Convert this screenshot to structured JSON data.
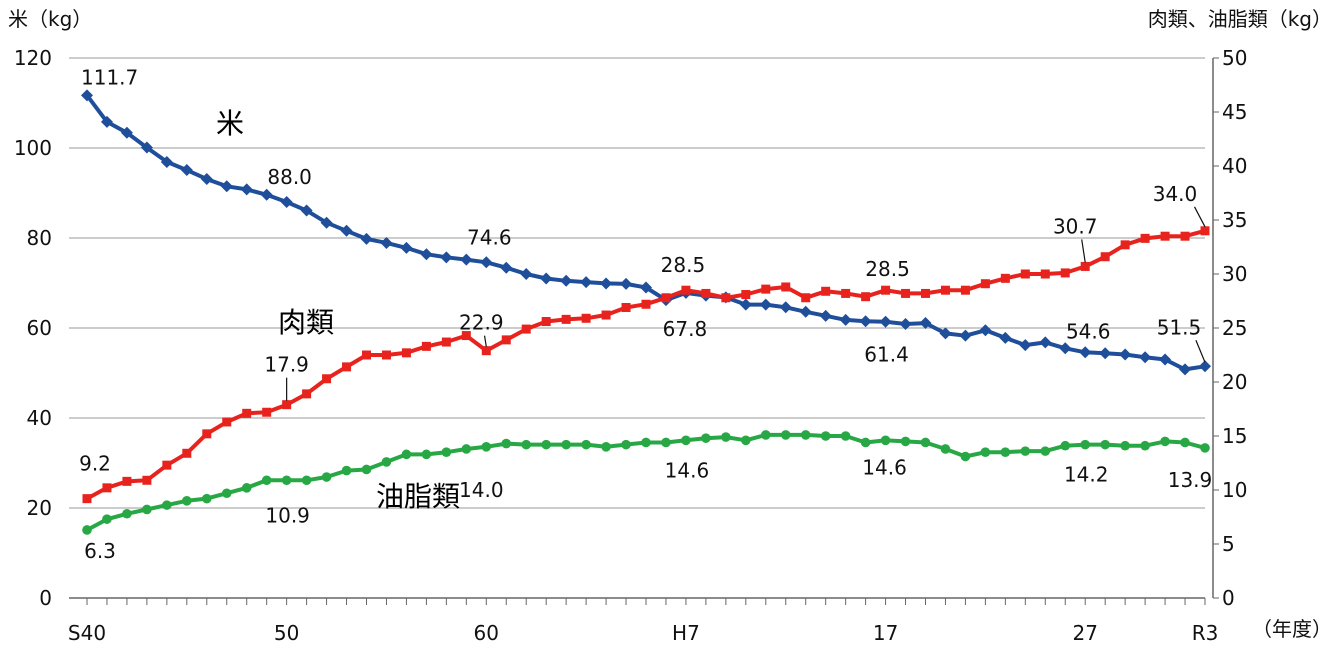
{
  "chart_data": {
    "type": "line",
    "y_left_label": "米（kg）",
    "y_right_label": "肉類、油脂類（kg）",
    "x_unit_label": "（年度）",
    "y_left_lim": [
      0,
      120
    ],
    "y_right_lim": [
      0,
      50
    ],
    "y_left_ticks": [
      "0",
      "20",
      "40",
      "60",
      "80",
      "100",
      "120"
    ],
    "y_right_ticks": [
      "0",
      "5",
      "10",
      "15",
      "20",
      "25",
      "30",
      "35",
      "40",
      "45",
      "50"
    ],
    "x_tick_labels": [
      {
        "index": 0,
        "label": "S40"
      },
      {
        "index": 10,
        "label": "50"
      },
      {
        "index": 20,
        "label": "60"
      },
      {
        "index": 30,
        "label": "H7"
      },
      {
        "index": 40,
        "label": "17"
      },
      {
        "index": 50,
        "label": "27"
      },
      {
        "index": 56,
        "label": "R3"
      }
    ],
    "x_count": 57,
    "series": [
      {
        "name": "米",
        "axis": "left",
        "color": "#1f4e9b",
        "marker": "diamond",
        "values": [
          111.7,
          105.8,
          103.4,
          100.1,
          96.9,
          95.1,
          93.1,
          91.5,
          90.8,
          89.6,
          88.0,
          86.1,
          83.4,
          81.6,
          79.8,
          78.9,
          77.8,
          76.4,
          75.7,
          75.2,
          74.6,
          73.4,
          72.0,
          71.0,
          70.5,
          70.2,
          69.9,
          69.8,
          69.0,
          66.2,
          67.8,
          67.2,
          66.8,
          65.2,
          65.2,
          64.6,
          63.6,
          62.7,
          61.8,
          61.5,
          61.4,
          60.9,
          61.1,
          58.8,
          58.3,
          59.5,
          57.8,
          56.2,
          56.8,
          55.5,
          54.6,
          54.4,
          54.1,
          53.5,
          53.0,
          50.8,
          51.5
        ]
      },
      {
        "name": "肉類",
        "axis": "right",
        "color": "#e8231d",
        "marker": "square",
        "values": [
          9.2,
          10.2,
          10.8,
          10.9,
          12.3,
          13.4,
          15.2,
          16.3,
          17.1,
          17.2,
          17.9,
          18.9,
          20.3,
          21.4,
          22.5,
          22.5,
          22.7,
          23.3,
          23.7,
          24.3,
          22.9,
          23.9,
          24.9,
          25.6,
          25.8,
          25.9,
          26.2,
          26.9,
          27.2,
          27.8,
          28.5,
          28.2,
          27.8,
          28.1,
          28.6,
          28.8,
          27.8,
          28.4,
          28.2,
          27.9,
          28.5,
          28.2,
          28.2,
          28.5,
          28.5,
          29.1,
          29.6,
          30.0,
          30.0,
          30.1,
          30.7,
          31.6,
          32.7,
          33.3,
          33.5,
          33.5,
          34.0
        ]
      },
      {
        "name": "油脂類",
        "axis": "right",
        "color": "#27a844",
        "marker": "circle",
        "values": [
          6.3,
          7.3,
          7.8,
          8.2,
          8.6,
          9.0,
          9.2,
          9.7,
          10.2,
          10.9,
          10.9,
          10.9,
          11.2,
          11.8,
          11.9,
          12.6,
          13.3,
          13.3,
          13.5,
          13.8,
          14.0,
          14.3,
          14.2,
          14.2,
          14.2,
          14.2,
          14.0,
          14.2,
          14.4,
          14.4,
          14.6,
          14.8,
          14.9,
          14.6,
          15.1,
          15.1,
          15.1,
          15.0,
          15.0,
          14.4,
          14.6,
          14.5,
          14.4,
          13.8,
          13.1,
          13.5,
          13.5,
          13.6,
          13.6,
          14.1,
          14.2,
          14.2,
          14.1,
          14.1,
          14.5,
          14.4,
          13.9
        ]
      }
    ],
    "series_labels": [
      {
        "text": "米",
        "color": "#1f4e9b"
      },
      {
        "text": "肉類",
        "color": "#e8231d"
      },
      {
        "text": "油脂類",
        "color": "#27a844"
      }
    ],
    "data_labels": [
      {
        "series": "米",
        "index": 0,
        "text": "111.7"
      },
      {
        "series": "米",
        "index": 10,
        "text": "88.0"
      },
      {
        "series": "米",
        "index": 20,
        "text": "74.6"
      },
      {
        "series": "米",
        "index": 30,
        "text": "67.8"
      },
      {
        "series": "米",
        "index": 40,
        "text": "61.4"
      },
      {
        "series": "米",
        "index": 50,
        "text": "54.6"
      },
      {
        "series": "米",
        "index": 56,
        "text": "51.5"
      },
      {
        "series": "肉類",
        "index": 0,
        "text": "9.2"
      },
      {
        "series": "肉類",
        "index": 10,
        "text": "17.9"
      },
      {
        "series": "肉類",
        "index": 20,
        "text": "22.9"
      },
      {
        "series": "肉類",
        "index": 30,
        "text": "28.5"
      },
      {
        "series": "肉類",
        "index": 40,
        "text": "28.5"
      },
      {
        "series": "肉類",
        "index": 50,
        "text": "30.7"
      },
      {
        "series": "肉類",
        "index": 56,
        "text": "34.0"
      },
      {
        "series": "油脂類",
        "index": 0,
        "text": "6.3"
      },
      {
        "series": "油脂類",
        "index": 10,
        "text": "10.9"
      },
      {
        "series": "油脂類",
        "index": 20,
        "text": "14.0"
      },
      {
        "series": "油脂類",
        "index": 30,
        "text": "14.6"
      },
      {
        "series": "油脂類",
        "index": 40,
        "text": "14.6"
      },
      {
        "series": "油脂類",
        "index": 50,
        "text": "14.2"
      },
      {
        "series": "油脂類",
        "index": 56,
        "text": "13.9"
      }
    ]
  }
}
